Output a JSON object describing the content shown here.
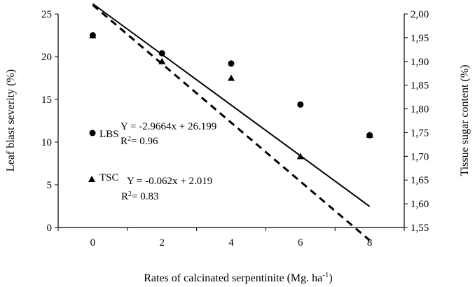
{
  "chart_data": {
    "type": "scatter",
    "title": "",
    "xlabel": "Rates of calcinated serpentinite (Mg. ha",
    "xlabel_sup": "-1",
    "xlabel_close": ")",
    "ylabel_left": "Leaf blast severity (%)",
    "ylabel_right": "Tissue sugar content (%)",
    "xlim": [
      -1,
      9
    ],
    "x_ticks": [
      "0",
      "2",
      "4",
      "6",
      "8"
    ],
    "y_left_lim": [
      0,
      25
    ],
    "y_left_ticks": [
      "0",
      "5",
      "10",
      "15",
      "20",
      "25"
    ],
    "y_right_lim": [
      1.55,
      2.0
    ],
    "y_right_ticks": [
      "1,55",
      "1,60",
      "1,65",
      "1,70",
      "1,75",
      "1,80",
      "1,85",
      "1,90",
      "1,95",
      "2,00"
    ],
    "grid": false,
    "series": [
      {
        "name": "LBS",
        "axis": "left",
        "marker": "circle",
        "x": [
          0,
          2,
          4,
          6,
          8
        ],
        "y": [
          22.5,
          20.4,
          19.2,
          14.4,
          10.8
        ],
        "trend": {
          "style": "solid",
          "slope": -2.9664,
          "intercept": 26.199,
          "equation": "Y = -2.9664x + 26.199",
          "r2_label": "R",
          "r2_value": "= 0.96"
        }
      },
      {
        "name": "TSC",
        "axis": "right",
        "marker": "triangle",
        "x": [
          0,
          2,
          4,
          6,
          8
        ],
        "y": [
          1.955,
          1.9,
          1.865,
          1.7,
          1.745
        ],
        "trend": {
          "style": "dashed",
          "slope": -0.062,
          "intercept": 2.019,
          "equation": "Y = -0.062x + 2.019",
          "r2_label": "R",
          "r2_value": "= 0.83"
        }
      }
    ],
    "colors": {
      "ink": "#000000",
      "background": "#ffffff"
    }
  }
}
